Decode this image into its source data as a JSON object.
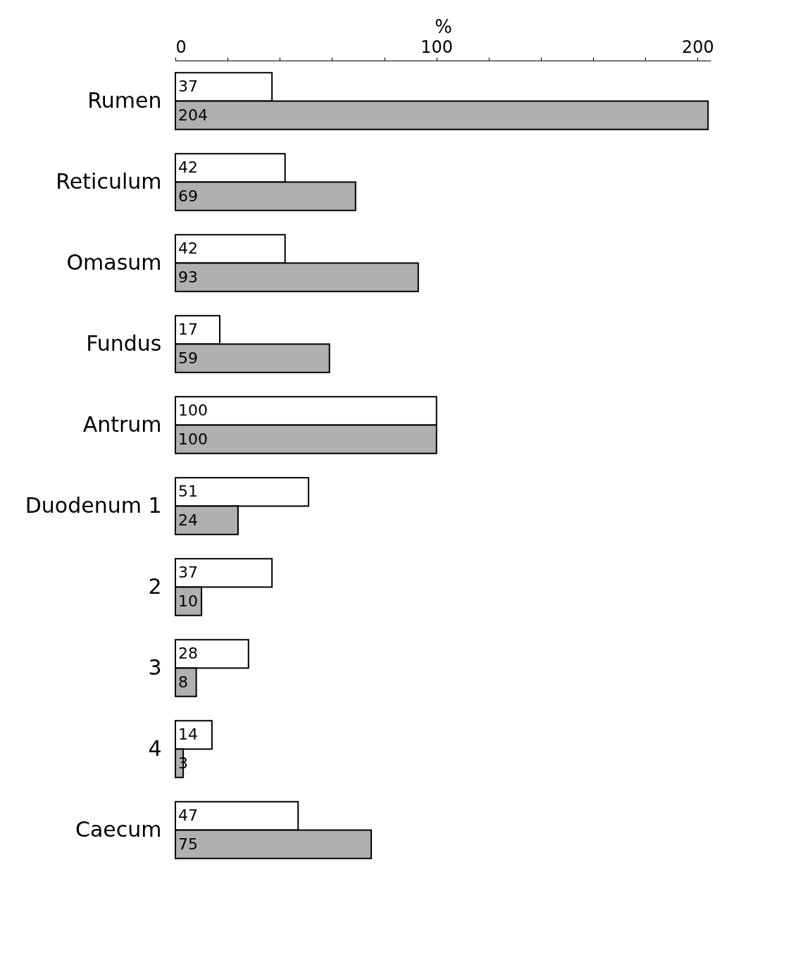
{
  "chart_data": {
    "type": "bar",
    "orientation": "horizontal",
    "xlabel": "%",
    "categories": [
      "Rumen",
      "Reticulum",
      "Omasum",
      "Fundus",
      "Antrum",
      "Duodenum 1",
      "2",
      "3",
      "4",
      "Caecum"
    ],
    "series": [
      {
        "color": "#ffffff",
        "values": [
          37,
          42,
          42,
          17,
          100,
          51,
          37,
          28,
          14,
          47
        ]
      },
      {
        "color": "#b0b0b0",
        "values": [
          204,
          69,
          93,
          59,
          100,
          24,
          10,
          8,
          3,
          75
        ]
      }
    ],
    "xlim": [
      0,
      205
    ],
    "xticks": [
      0,
      {
        "value": 20,
        "label": null
      },
      {
        "value": 40,
        "label": null
      },
      {
        "value": 60,
        "label": null
      },
      {
        "value": 80,
        "label": null
      },
      100,
      {
        "value": 120,
        "label": null
      },
      {
        "value": 140,
        "label": null
      },
      {
        "value": 160,
        "label": null
      },
      {
        "value": 180,
        "label": null
      },
      200
    ],
    "data_labels": true,
    "grid": false,
    "legend": false
  }
}
